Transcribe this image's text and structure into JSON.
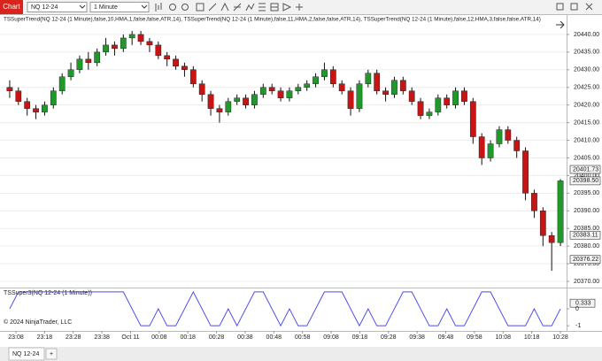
{
  "toolbar": {
    "tab": "Chart",
    "instrument": "NQ 12-24",
    "interval": "1 Minute"
  },
  "chart_data": {
    "type": "candlestick",
    "title": "TSSuperTrend(NQ 12-24 (1 Minute),false,10,HMA,1,false,false,ATR,14), TSSuperTrend(NQ 12-24 (1 Minute),false,11,HMA,2,false,false,ATR,14), TSSuperTrend(NQ 12-24 (1 Minute),false,12,HMA,3,false,false,ATR,14)",
    "x_labels": [
      "23:08",
      "23:18",
      "23:28",
      "23:38",
      "Oct 11",
      "00:08",
      "00:18",
      "00:28",
      "00:38",
      "00:48",
      "00:58",
      "09:08",
      "09:18",
      "09:28",
      "09:38",
      "09:48",
      "09:58",
      "10:08",
      "10:18",
      "10:28"
    ],
    "open": [
      20425,
      20424,
      20421,
      20419,
      20418,
      20420,
      20424,
      20428,
      20430,
      20433,
      20432,
      20435,
      20437,
      20436,
      20439,
      20440,
      20438,
      20437,
      20434,
      20433,
      20431,
      20430,
      20426,
      20423,
      20419,
      20418,
      20421,
      20422,
      20420,
      20423,
      20425,
      20424,
      20422,
      20424,
      20425,
      20426,
      20428,
      20430,
      20426,
      20424,
      20419,
      20426,
      20429,
      20424,
      20423,
      20427,
      20424,
      20421,
      20417,
      20418,
      20422,
      20420,
      20424,
      20421,
      20411,
      20405,
      20409,
      20413,
      20410,
      20407,
      20395,
      20390,
      20383,
      20381
    ],
    "high": [
      20427,
      20425,
      20422,
      20420,
      20421,
      20425,
      20429,
      20432,
      20434,
      20435,
      20436,
      20439,
      20438,
      20440,
      20441,
      20441,
      20439,
      20438,
      20435,
      20434,
      20432,
      20431,
      20427,
      20424,
      20420,
      20422,
      20423,
      20423,
      20424,
      20426,
      20426,
      20425,
      20425,
      20426,
      20427,
      20429,
      20432,
      20431,
      20427,
      20425,
      20427,
      20430,
      20430,
      20425,
      20428,
      20428,
      20425,
      20422,
      20419,
      20423,
      20423,
      20425,
      20425,
      20422,
      20412,
      20410,
      20414,
      20414,
      20411,
      20408,
      20396,
      20391,
      20384,
      20399
    ],
    "low": [
      20422,
      20420,
      20417,
      20416,
      20417,
      20419,
      20423,
      20427,
      20429,
      20430,
      20431,
      20434,
      20434,
      20435,
      20437,
      20437,
      20435,
      20433,
      20431,
      20430,
      20428,
      20425,
      20421,
      20417,
      20415,
      20417,
      20420,
      20419,
      20419,
      20422,
      20423,
      20421,
      20421,
      20423,
      20424,
      20425,
      20427,
      20425,
      20423,
      20417,
      20418,
      20425,
      20423,
      20421,
      20422,
      20423,
      20420,
      20416,
      20416,
      20417,
      20419,
      20419,
      20420,
      20409,
      20403,
      20404,
      20408,
      20409,
      20405,
      20393,
      20388,
      20380,
      20373,
      20380
    ],
    "close": [
      20424,
      20421,
      20419,
      20418,
      20420,
      20424,
      20428,
      20430,
      20433,
      20432,
      20435,
      20437,
      20436,
      20439,
      20440,
      20438,
      20437,
      20434,
      20433,
      20431,
      20430,
      20426,
      20423,
      20419,
      20418,
      20421,
      20422,
      20420,
      20423,
      20425,
      20424,
      20422,
      20424,
      20425,
      20426,
      20428,
      20430,
      20426,
      20424,
      20419,
      20426,
      20429,
      20424,
      20423,
      20427,
      20424,
      20421,
      20417,
      20418,
      20422,
      20420,
      20424,
      20421,
      20411,
      20405,
      20409,
      20413,
      20410,
      20407,
      20395,
      20390,
      20383,
      20381,
      20398.5
    ],
    "up_color": "#1f9a2a",
    "down_color": "#c81414",
    "ylim": [
      20368.25,
      20445.5
    ],
    "yticks": [
      {
        "value": 20440,
        "label": "20440.00"
      },
      {
        "value": 20435,
        "label": "20435.00"
      },
      {
        "value": 20430,
        "label": "20430.00"
      },
      {
        "value": 20425,
        "label": "20425.00"
      },
      {
        "value": 20420,
        "label": "20420.00"
      },
      {
        "value": 20415,
        "label": "20415.00"
      },
      {
        "value": 20410,
        "label": "20410.00"
      },
      {
        "value": 20405,
        "label": "20405.00"
      },
      {
        "value": 20400,
        "label": "20400.00"
      },
      {
        "value": 20395,
        "label": "20395.00"
      },
      {
        "value": 20390,
        "label": "20390.00"
      },
      {
        "value": 20385,
        "label": "20385.00"
      },
      {
        "value": 20380,
        "label": "20380.00"
      },
      {
        "value": 20375,
        "label": "20375.00"
      },
      {
        "value": 20370,
        "label": "20370.00"
      }
    ],
    "price_markers": [
      {
        "value": 20401.73,
        "label": "20401.73"
      },
      {
        "value": 20398.5,
        "label": "20398.50"
      },
      {
        "value": 20383.11,
        "label": "20383.11"
      },
      {
        "value": 20376.22,
        "label": "20376.22"
      }
    ],
    "grid": true
  },
  "indicator": {
    "title": "TSSuper3(NQ 12-24 (1 Minute))",
    "color": "#4a4af0",
    "values": [
      0,
      1,
      1,
      1,
      1,
      1,
      1,
      1,
      1,
      1,
      1,
      1,
      1,
      1,
      0,
      -1,
      -1,
      0,
      -1,
      -1,
      0,
      1,
      0,
      -1,
      -1,
      0,
      -1,
      0,
      1,
      1,
      0,
      -1,
      0,
      -1,
      -1,
      0,
      1,
      1,
      1,
      0,
      -1,
      0,
      -1,
      -1,
      0,
      1,
      1,
      0,
      -1,
      -1,
      0,
      -1,
      -1,
      0,
      1,
      1,
      0,
      -1,
      -1,
      -1,
      0,
      -1,
      -1,
      0
    ],
    "ylim": [
      -1.2,
      1.1
    ],
    "yticks": [
      {
        "value": 0.333,
        "label": "0.333"
      },
      0,
      -1
    ]
  },
  "copyright": "© 2024 NinjaTrader, LLC",
  "tabs": {
    "active": "NQ 12-24",
    "add": "+"
  }
}
